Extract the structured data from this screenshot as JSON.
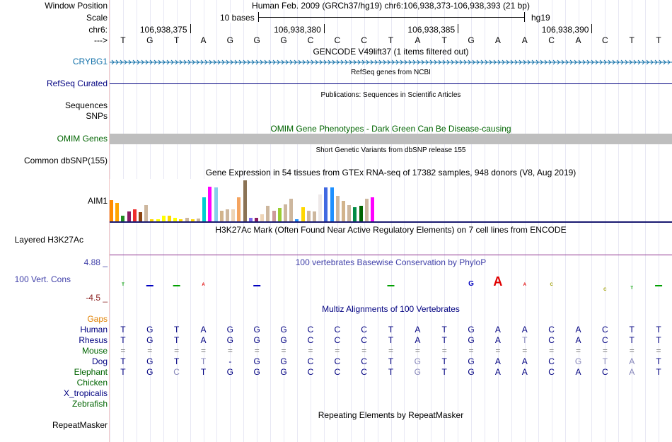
{
  "header": {
    "window_position_label": "Window Position",
    "assembly_and_range": "Human Feb. 2009 (GRCh37/hg19)   chr6:106,938,373-106,938,393 (21 bp)",
    "scale_label": "Scale",
    "scale_text": "10 bases",
    "scale_db": "hg19",
    "chrom_label": "chr6:",
    "coord_ticks": [
      "106,938,375",
      "106,938,380",
      "106,938,385",
      "106,938,390"
    ],
    "strand_label": "--->",
    "bases": [
      "T",
      "G",
      "T",
      "A",
      "G",
      "G",
      "G",
      "C",
      "C",
      "C",
      "T",
      "A",
      "T",
      "G",
      "A",
      "A",
      "C",
      "A",
      "C",
      "T",
      "T"
    ]
  },
  "tracks": {
    "gencode_title": "GENCODE V49lift37 (1 items filtered out)",
    "gencode_gene": "CRYBG1",
    "refseq_title": "RefSeq genes from NCBI",
    "refseq_label": "RefSeq Curated",
    "publications_title": "Publications: Sequences in Scientific Articles",
    "sequences_label": "Sequences",
    "snps_label": "SNPs",
    "omim_title": "OMIM Gene Phenotypes - Dark Green Can Be Disease-causing",
    "omim_label": "OMIM Genes",
    "dbsnp_title": "Short Genetic Variants from dbSNP release 155",
    "dbsnp_label": "Common dbSNP(155)",
    "gtex_title": "Gene Expression in 54 tissues from GTEx RNA-seq of 17382 samples, 948 donors (V8, Aug 2019)",
    "gtex_label": "AIM1",
    "h3k27ac_title": "H3K27Ac Mark (Often Found Near Active Regulatory Elements) on 7 cell lines from ENCODE",
    "h3k27ac_label": "Layered H3K27Ac",
    "phylop_title": "100 vertebrates Basewise Conservation by PhyloP",
    "phylop_label": "100 Vert. Cons",
    "phylop_max": "4.88 _",
    "phylop_min": "-4.5 _",
    "multiz_title": "Multiz Alignments of 100 Vertebrates",
    "gaps_label": "Gaps",
    "repeat_title": "Repeating Elements by RepeatMasker",
    "repeat_label": "RepeatMasker"
  },
  "species": [
    {
      "name": "Human",
      "color": "#000080",
      "bases": [
        "T",
        "G",
        "T",
        "A",
        "G",
        "G",
        "G",
        "C",
        "C",
        "C",
        "T",
        "A",
        "T",
        "G",
        "A",
        "A",
        "C",
        "A",
        "C",
        "T",
        "T"
      ],
      "dim": []
    },
    {
      "name": "Rhesus",
      "color": "#000080",
      "bases": [
        "T",
        "G",
        "T",
        "A",
        "G",
        "G",
        "G",
        "C",
        "C",
        "C",
        "T",
        "A",
        "T",
        "G",
        "A",
        "T",
        "C",
        "A",
        "C",
        "T",
        "T"
      ],
      "dim": [
        15
      ]
    },
    {
      "name": "Mouse",
      "color": "#006400",
      "bases": [
        "=",
        "=",
        "=",
        "=",
        "=",
        "=",
        "=",
        "=",
        "=",
        "=",
        "=",
        "=",
        "=",
        "=",
        "=",
        "=",
        "=",
        "=",
        "=",
        "=",
        "="
      ],
      "dim": []
    },
    {
      "name": "Dog",
      "color": "#000080",
      "bases": [
        "T",
        "G",
        "T",
        "T",
        "-",
        "G",
        "G",
        "C",
        "C",
        "C",
        "T",
        "G",
        "T",
        "G",
        "A",
        "A",
        "C",
        "G",
        "T",
        "A",
        "T"
      ],
      "dim": [
        3,
        11,
        17,
        18,
        19
      ]
    },
    {
      "name": "Elephant",
      "color": "#006400",
      "bases": [
        "T",
        "G",
        "C",
        "T",
        "G",
        "G",
        "G",
        "C",
        "C",
        "C",
        "T",
        "G",
        "T",
        "G",
        "A",
        "A",
        "C",
        "A",
        "C",
        "A",
        "T"
      ],
      "dim": [
        2,
        11,
        19
      ]
    },
    {
      "name": "Chicken",
      "color": "#006400",
      "bases": [],
      "dim": []
    },
    {
      "name": "X_tropicalis",
      "color": "#000080",
      "bases": [],
      "dim": []
    },
    {
      "name": "Zebrafish",
      "color": "#006400",
      "bases": [],
      "dim": []
    }
  ],
  "gtex_colors": [
    "#FF8C00",
    "#FFA500",
    "#228B22",
    "#8B1C62",
    "#EE2C2C",
    "#8B4513",
    "#CDB79E",
    "#FFD700",
    "#FFFF00",
    "#FFFF00",
    "#FFD700",
    "#FFFF00",
    "#FFD700",
    "#CDB79E",
    "#FFD700",
    "#CDB79E",
    "#00CED1",
    "#FF00FF",
    "#87CEEB",
    "#D2B48C",
    "#CDB79E",
    "#EED5B7",
    "#F4A460",
    "#8B7355",
    "#7A67EE",
    "#8B1C62",
    "#EED5B7",
    "#CDB79E",
    "#CD9B9B",
    "#9ACD32",
    "#CDB79E",
    "#CDB79E",
    "#1E90FF",
    "#FFD700",
    "#CDB79E",
    "#CDB79E",
    "#EEE9E9",
    "#4169E1",
    "#1E90FF",
    "#CDB79E",
    "#D2B48C",
    "#CDB79E",
    "#008B45",
    "#006400",
    "#CDB79E",
    "#FF00FF"
  ],
  "gtex_values": [
    0.52,
    0.45,
    0.14,
    0.25,
    0.3,
    0.22,
    0.4,
    0.05,
    0.05,
    0.14,
    0.14,
    0.08,
    0.06,
    0.08,
    0.06,
    0.07,
    0.58,
    0.84,
    0.82,
    0.26,
    0.3,
    0.3,
    0.58,
    1.0,
    0.08,
    0.08,
    0.18,
    0.38,
    0.26,
    0.32,
    0.42,
    0.56,
    0.06,
    0.34,
    0.26,
    0.25,
    0.66,
    0.82,
    0.82,
    0.62,
    0.5,
    0.4,
    0.35,
    0.38,
    0.56,
    0.58
  ],
  "phylop_values": [
    0.1,
    0.02,
    0.05,
    0.1,
    0,
    0.04,
    0,
    0,
    0,
    0,
    -0.05,
    0,
    0,
    0.5,
    0.9,
    0.3,
    0.2,
    0,
    -0.25,
    -0.15,
    0.05
  ],
  "colors": {
    "title_blue": "#000080",
    "gene_blue": "#0F6FA8",
    "omim_green": "#006400",
    "phylop_blue": "#3F3FA8",
    "h3k_purple": "#8C2D8C",
    "gaps_orange": "#E08000",
    "axis_brown": "#8B2020"
  }
}
